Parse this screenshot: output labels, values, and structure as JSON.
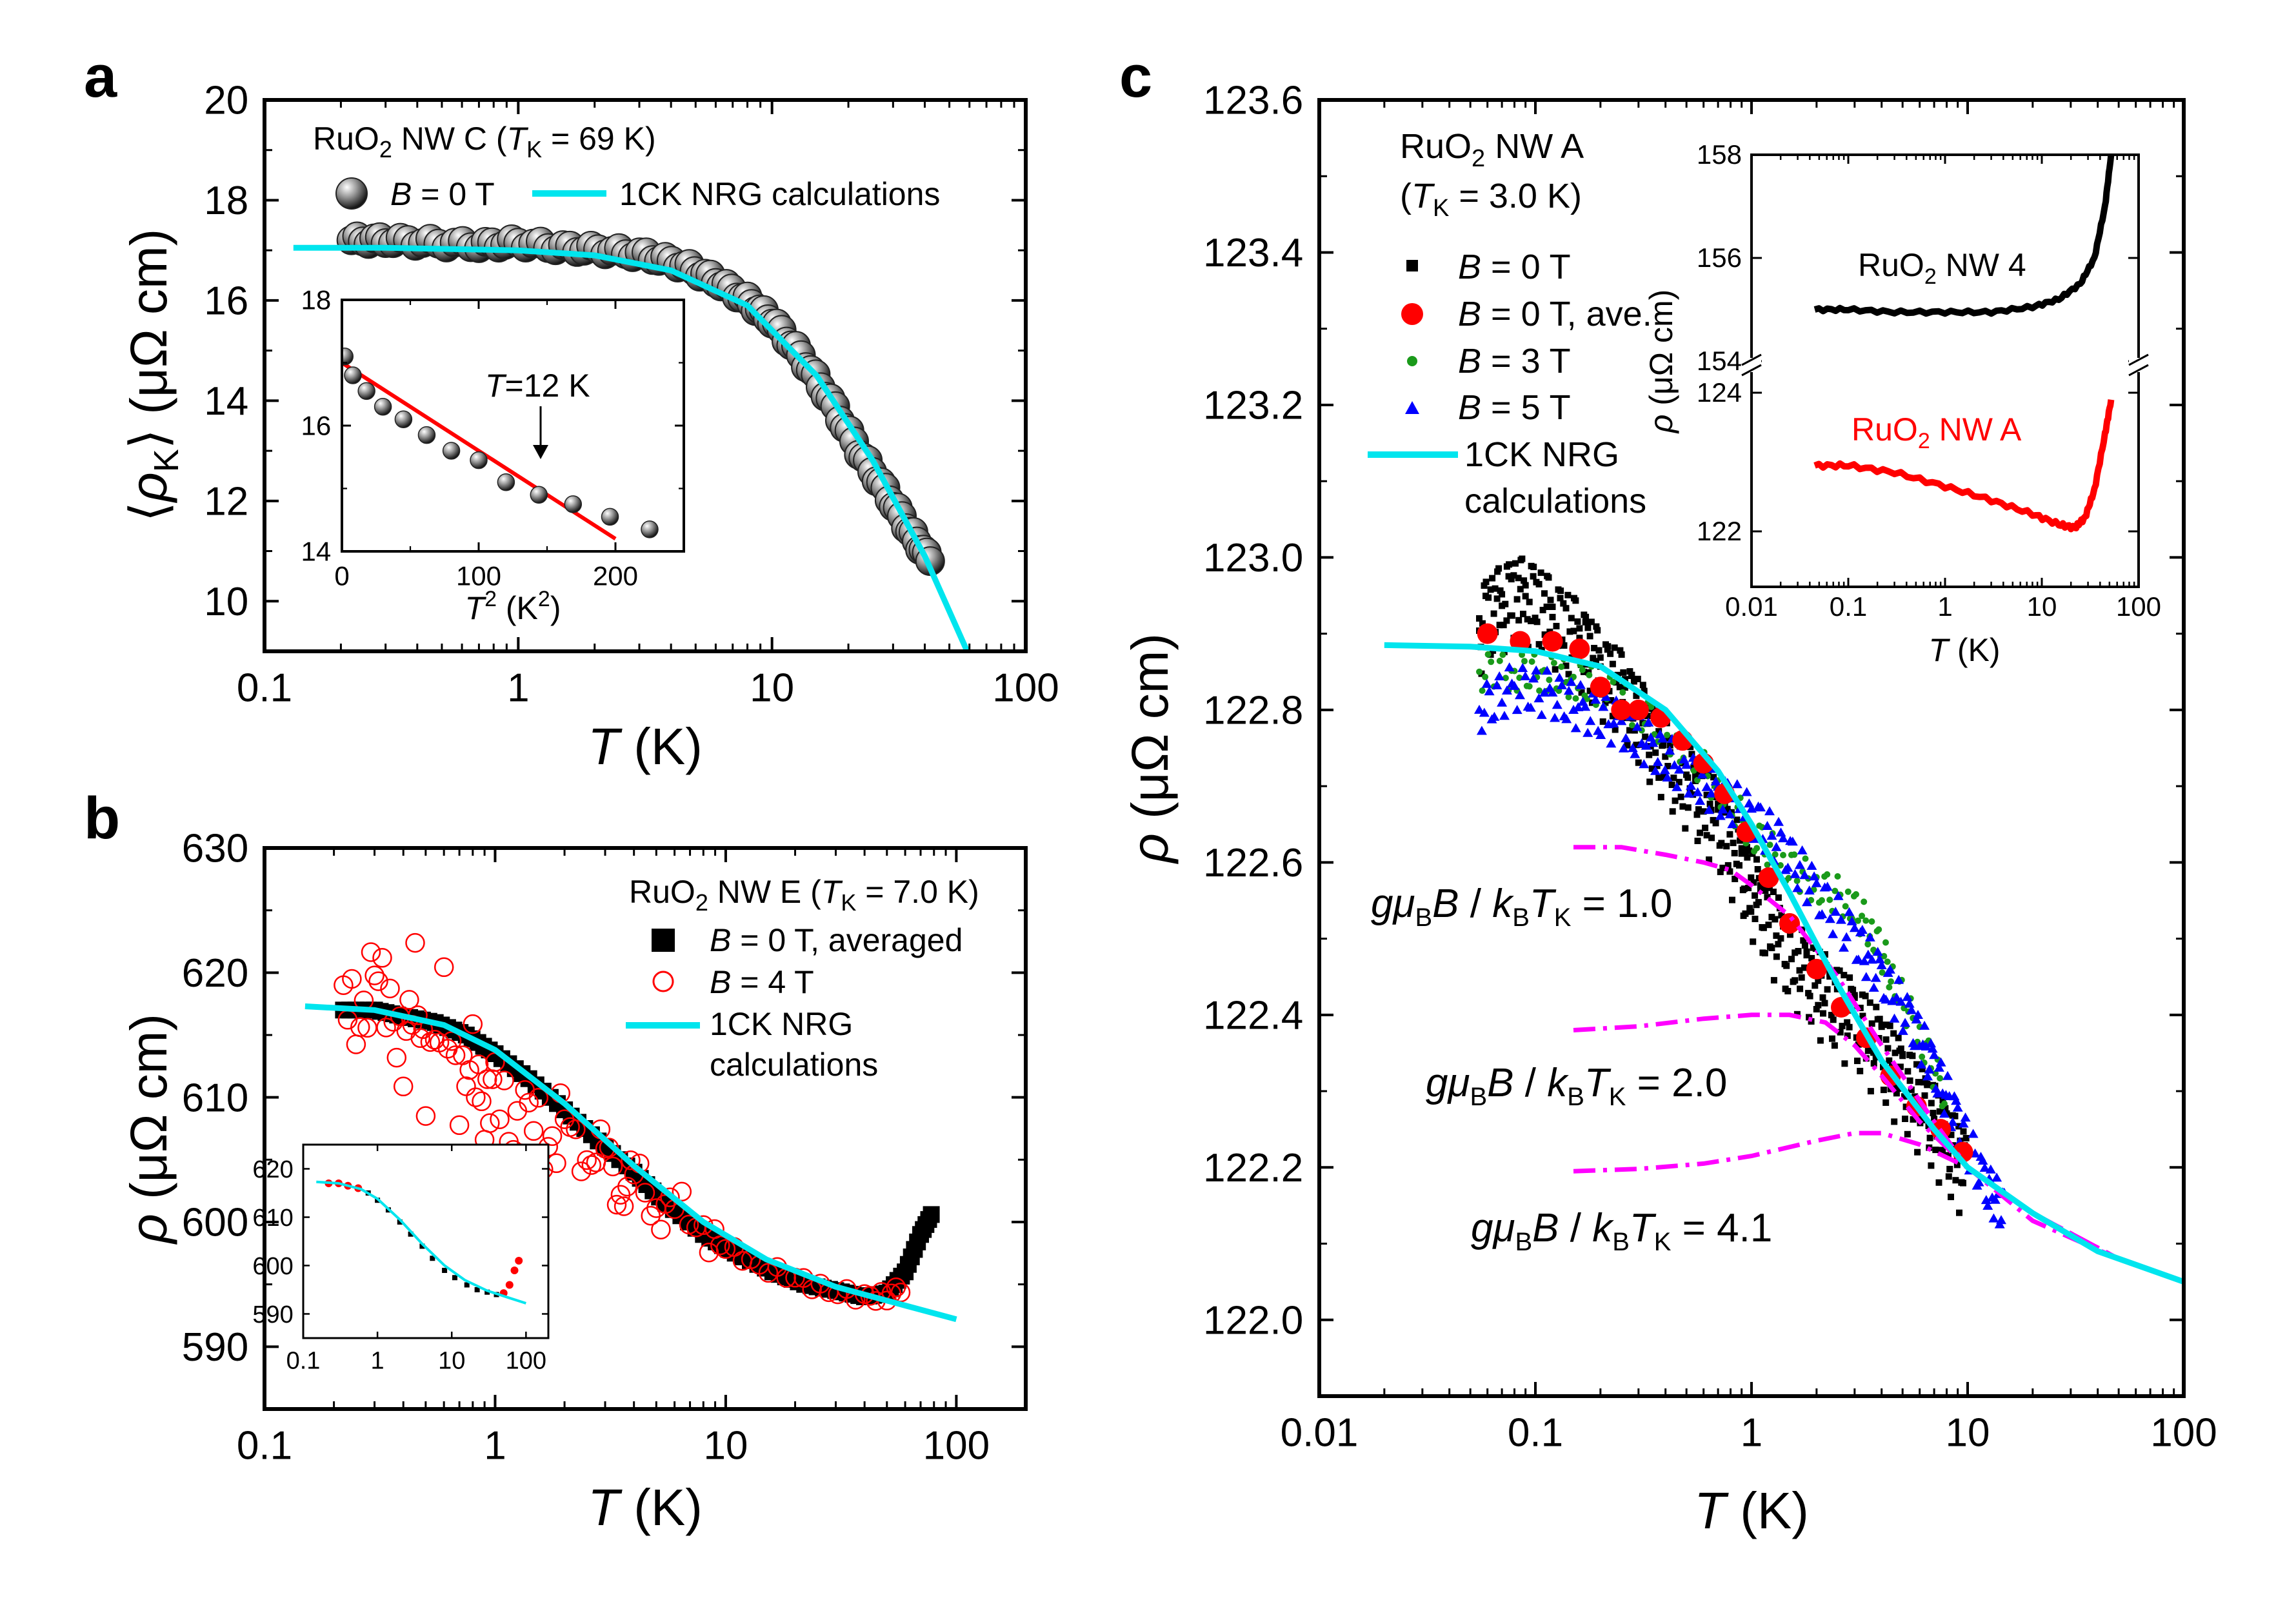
{
  "colors": {
    "nrg": "#00e5ee",
    "ave": "#ff0000",
    "b3": "#1a9a1a",
    "b5": "#0000ff",
    "magenta": "#ff00ff",
    "sphere": "#444444",
    "black": "#000000"
  },
  "chart_data": [
    {
      "id": "a",
      "type": "scatter",
      "panel_label": "a",
      "title": "RuO2 NW C (TK = 69 K)",
      "title_parts": {
        "pre": "RuO",
        "sub1": "2",
        "mid": " NW C (",
        "it": "T",
        "sub2": "K",
        "post": " = 69 K)"
      },
      "xlabel": "T (K)",
      "ylabel": "⟨ρK⟩ (μΩ cm)",
      "ylabel_parts": {
        "open": "⟨",
        "rho": "ρ",
        "sub": "K",
        "close": "⟩",
        "unit": " (μΩ cm)"
      },
      "xscale": "log",
      "xlim": [
        0.1,
        100
      ],
      "ylim": [
        9,
        20
      ],
      "xticks": [
        "0.1",
        "1",
        "10",
        "100"
      ],
      "yticks": [
        "10",
        "12",
        "14",
        "16",
        "18",
        "20"
      ],
      "legend": [
        {
          "symbol": "sphere",
          "label": "B = 0 T",
          "it": "B",
          "rest": " = 0 T"
        },
        {
          "symbol": "line",
          "label": "1CK NRG calculations"
        }
      ],
      "series": [
        {
          "name": "B = 0 T",
          "x": [
            0.22,
            0.3,
            0.45,
            0.7,
            1.0,
            1.5,
            2.2,
            3.2,
            4.5,
            6.0,
            8.0,
            10,
            13,
            17,
            22,
            28,
            35,
            42
          ],
          "y": [
            17.2,
            17.2,
            17.15,
            17.1,
            17.15,
            17.05,
            17.0,
            16.9,
            16.7,
            16.4,
            16.0,
            15.6,
            14.9,
            14.0,
            13.0,
            12.2,
            11.4,
            10.8
          ]
        },
        {
          "name": "1CK NRG calculations",
          "x": [
            0.13,
            0.3,
            1,
            2,
            4,
            8,
            15,
            25,
            40,
            60
          ],
          "y": [
            17.05,
            17.05,
            17.0,
            16.9,
            16.6,
            15.9,
            14.5,
            12.8,
            10.9,
            8.9
          ]
        }
      ],
      "inset": {
        "xlabel": "T2 (K2)",
        "xlim": [
          0,
          250
        ],
        "ylim": [
          14,
          18
        ],
        "xticks": [
          "0",
          "100",
          "200"
        ],
        "yticks": [
          "14",
          "16",
          "18"
        ],
        "annotation": "T=12 K",
        "annotation_parts": {
          "it": "T",
          "rest": "=12 K"
        },
        "series": [
          {
            "name": "data",
            "x": [
              2,
              8,
              18,
              30,
              45,
              62,
              80,
              100,
              120,
              144,
              169,
              196,
              225
            ],
            "y": [
              17.1,
              16.8,
              16.55,
              16.3,
              16.1,
              15.85,
              15.6,
              15.45,
              15.1,
              14.9,
              14.75,
              14.55,
              14.35
            ]
          },
          {
            "name": "fit",
            "x": [
              0,
              200
            ],
            "y": [
              17.0,
              14.2
            ]
          }
        ]
      }
    },
    {
      "id": "b",
      "type": "scatter",
      "panel_label": "b",
      "title": "RuO2 NW E (TK = 7.0 K)",
      "title_parts": {
        "pre": "RuO",
        "sub1": "2",
        "mid": " NW E (",
        "it": "T",
        "sub2": "K",
        "post": " = 7.0 K)"
      },
      "xlabel": "T (K)",
      "ylabel": "ρ (μΩ cm)",
      "xscale": "log",
      "xlim": [
        0.1,
        200
      ],
      "ylim": [
        585,
        630
      ],
      "xticks": [
        "0.1",
        "1",
        "10",
        "100"
      ],
      "yticks": [
        "590",
        "600",
        "610",
        "620",
        "630"
      ],
      "legend": [
        {
          "symbol": "square",
          "label": "B = 0 T, averaged",
          "it": "B",
          "rest": " = 0 T, averaged"
        },
        {
          "symbol": "circle",
          "label": "B = 4 T",
          "it": "B",
          "rest": " = 4 T"
        },
        {
          "symbol": "line",
          "label": "1CK NRG calculations",
          "line1": "1CK NRG",
          "line2": "calculations"
        }
      ],
      "series": [
        {
          "name": "B = 0 T, averaged",
          "x": [
            0.22,
            0.3,
            0.4,
            0.55,
            0.75,
            1.0,
            1.4,
            2.0,
            2.8,
            4.0,
            5.5,
            8,
            11,
            16,
            22,
            30,
            40,
            50,
            60,
            70,
            80
          ],
          "y": [
            617,
            617,
            616.5,
            616,
            615,
            613.5,
            611.5,
            609,
            606.5,
            604,
            601.5,
            599,
            597.5,
            596,
            595,
            594.5,
            594,
            594.3,
            596,
            599,
            601
          ]
        },
        {
          "name": "B = 4 T",
          "x": [
            0.22,
            0.26,
            0.3,
            0.35,
            0.4,
            0.45,
            0.5,
            0.6,
            0.7,
            0.8,
            0.9,
            1.0,
            1.2,
            1.4,
            1.7,
            2.0,
            2.5,
            3.0,
            3.5,
            4.0,
            5.0,
            6.0,
            8.0,
            10,
            14,
            20,
            28,
            40,
            50,
            60
          ],
          "y": [
            619,
            615,
            621,
            617,
            613,
            620,
            611,
            618,
            610,
            614,
            608,
            612,
            606,
            610,
            605,
            609,
            604,
            607,
            601,
            605,
            600,
            602,
            599,
            598,
            596.5,
            595.5,
            594.5,
            594,
            594,
            595
          ]
        },
        {
          "name": "1CK NRG calculations",
          "x": [
            0.15,
            0.3,
            0.6,
            1,
            2,
            4,
            8,
            15,
            30,
            60,
            100
          ],
          "y": [
            617.3,
            617.0,
            615.8,
            613.8,
            609.5,
            604.5,
            600.0,
            597.0,
            594.8,
            593.3,
            592.2
          ]
        }
      ],
      "inset": {
        "xlim": [
          0.1,
          200
        ],
        "ylim": [
          585,
          625
        ],
        "xticks": [
          "0.1",
          "1",
          "10",
          "100"
        ],
        "yticks": [
          "590",
          "600",
          "610",
          "620"
        ]
      }
    },
    {
      "id": "c",
      "type": "scatter",
      "panel_label": "c",
      "title": "RuO2 NW A (TK = 3.0 K)",
      "title_parts": {
        "pre": "RuO",
        "sub1": "2",
        "mid": " NW A",
        "line2_pre": "(",
        "it": "T",
        "sub2": "K",
        "post": " = 3.0 K)"
      },
      "xlabel": "T (K)",
      "ylabel": "ρ (μΩ cm)",
      "xscale": "log",
      "xlim": [
        0.01,
        100
      ],
      "ylim": [
        121.9,
        123.6
      ],
      "xticks": [
        "0.01",
        "0.1",
        "1",
        "10",
        "100"
      ],
      "yticks": [
        "122.0",
        "122.2",
        "122.4",
        "122.6",
        "122.8",
        "123.0",
        "123.2",
        "123.4",
        "123.6"
      ],
      "legend": [
        {
          "symbol": "square",
          "label": "B = 0 T",
          "it": "B",
          "rest": " = 0 T"
        },
        {
          "symbol": "circle",
          "label": "B = 0 T, ave.",
          "it": "B",
          "rest": " = 0 T, ave."
        },
        {
          "symbol": "dot",
          "label": "B = 3 T",
          "it": "B",
          "rest": " = 3 T"
        },
        {
          "symbol": "triangle",
          "label": "B = 5 T",
          "it": "B",
          "rest": " = 5 T"
        },
        {
          "symbol": "line",
          "label": "1CK NRG calculations",
          "line1": "1CK NRG",
          "line2": "calculations"
        }
      ],
      "annotations": [
        {
          "text": "gμB B / kB TK = 1.0",
          "value": "1.0"
        },
        {
          "text": "gμB B / kB TK = 2.0",
          "value": "2.0"
        },
        {
          "text": "gμB B / kB TK = 4.1",
          "value": "4.1"
        }
      ],
      "series": [
        {
          "name": "B = 0 T",
          "x": [
            0.055,
            0.07,
            0.09,
            0.12,
            0.16,
            0.2,
            0.26,
            0.33,
            0.42,
            0.55,
            0.7,
            0.9,
            1.1,
            1.4,
            1.8,
            2.3,
            3.0,
            4.0,
            5.0,
            6.5,
            8.0,
            10
          ],
          "y": [
            122.92,
            122.95,
            122.96,
            122.93,
            122.9,
            122.86,
            122.83,
            122.78,
            122.74,
            122.7,
            122.66,
            122.6,
            122.55,
            122.5,
            122.46,
            122.43,
            122.4,
            122.36,
            122.32,
            122.28,
            122.24,
            122.2
          ]
        },
        {
          "name": "B = 0 T, ave.",
          "x": [
            0.06,
            0.085,
            0.12,
            0.16,
            0.2,
            0.25,
            0.3,
            0.38,
            0.48,
            0.6,
            0.75,
            0.95,
            1.2,
            1.5,
            2.0,
            2.6,
            3.4,
            4.4,
            5.8,
            7.5,
            9.5
          ],
          "y": [
            122.9,
            122.89,
            122.89,
            122.88,
            122.83,
            122.8,
            122.8,
            122.79,
            122.76,
            122.73,
            122.69,
            122.64,
            122.58,
            122.52,
            122.46,
            122.41,
            122.37,
            122.32,
            122.28,
            122.25,
            122.22
          ]
        },
        {
          "name": "B = 3 T",
          "x": [
            0.055,
            0.08,
            0.11,
            0.15,
            0.2,
            0.3,
            0.45,
            0.7,
            1.0,
            1.4,
            2.0,
            2.8,
            3.6,
            4.5,
            6.0,
            8.0
          ],
          "y": [
            122.85,
            122.85,
            122.85,
            122.84,
            122.83,
            122.8,
            122.76,
            122.7,
            122.64,
            122.6,
            122.57,
            122.55,
            122.51,
            122.45,
            122.37,
            122.29
          ]
        },
        {
          "name": "B = 5 T",
          "x": [
            0.055,
            0.08,
            0.12,
            0.17,
            0.25,
            0.35,
            0.5,
            0.7,
            1.0,
            1.4,
            2.0,
            3.0,
            4.0,
            5.5,
            7.0,
            9.0,
            12,
            15
          ],
          "y": [
            122.8,
            122.83,
            122.82,
            122.8,
            122.78,
            122.75,
            122.72,
            122.69,
            122.66,
            122.62,
            122.56,
            122.5,
            122.45,
            122.39,
            122.33,
            122.26,
            122.18,
            122.14
          ]
        },
        {
          "name": "1CK NRG calculations",
          "x": [
            0.02,
            0.05,
            0.1,
            0.2,
            0.4,
            0.7,
            1,
            1.5,
            2.5,
            4,
            7,
            10,
            20,
            40,
            100
          ],
          "y": [
            122.885,
            122.883,
            122.877,
            122.857,
            122.8,
            122.72,
            122.65,
            122.56,
            122.44,
            122.34,
            122.25,
            122.2,
            122.14,
            122.09,
            122.05
          ]
        },
        {
          "name": "gμB B / kB TK = 1.0",
          "x": [
            0.15,
            0.25,
            0.4,
            0.6,
            0.8,
            1,
            1.5,
            2.5,
            4,
            7,
            10,
            20,
            50,
            100
          ],
          "y": [
            122.62,
            122.62,
            122.61,
            122.6,
            122.59,
            122.57,
            122.53,
            122.45,
            122.36,
            122.26,
            122.2,
            122.13,
            122.08,
            122.05
          ]
        },
        {
          "name": "gμB B / kB TK = 2.0",
          "x": [
            0.15,
            0.3,
            0.6,
            1,
            1.5,
            2.2,
            3,
            4,
            6,
            10,
            20,
            50
          ],
          "y": [
            122.38,
            122.385,
            122.395,
            122.4,
            122.4,
            122.39,
            122.36,
            122.32,
            122.26,
            122.2,
            122.14,
            122.08
          ]
        },
        {
          "name": "gμB B / kB TK = 4.1",
          "x": [
            0.15,
            0.3,
            0.6,
            1,
            2,
            3,
            4,
            6,
            10,
            20,
            50
          ],
          "y": [
            122.195,
            122.198,
            122.205,
            122.215,
            122.235,
            122.245,
            122.245,
            122.23,
            122.2,
            122.14,
            122.08
          ]
        }
      ],
      "inset": {
        "xlabel": "T (K)",
        "ylabel": "ρ (μΩ cm)",
        "xlim": [
          0.01,
          100
        ],
        "xticks": [
          "0.01",
          "0.1",
          "1",
          "10",
          "100"
        ],
        "yticks_top": [
          "154",
          "156",
          "158"
        ],
        "yticks_bottom": [
          "122",
          "124"
        ],
        "labels": [
          {
            "name": "RuO2 NW 4",
            "pre": "RuO",
            "sub": "2",
            "post": " NW 4"
          },
          {
            "name": "RuO2 NW A",
            "pre": "RuO",
            "sub": "2",
            "post": " NW A"
          }
        ],
        "series": [
          {
            "name": "RuO2 NW 4",
            "x": [
              0.045,
              0.1,
              0.3,
              1,
              3,
              8,
              15,
              25,
              35,
              45,
              52
            ],
            "y": [
              155.0,
              155.0,
              154.95,
              154.95,
              154.95,
              155.05,
              155.2,
              155.5,
              156.0,
              157.0,
              158.0
            ]
          },
          {
            "name": "RuO2 NW A",
            "x": [
              0.045,
              0.1,
              0.3,
              1,
              3,
              8,
              15,
              22,
              28,
              35,
              45,
              52
            ],
            "y": [
              122.95,
              122.95,
              122.85,
              122.65,
              122.45,
              122.25,
              122.1,
              122.05,
              122.2,
              122.6,
              123.4,
              123.9
            ]
          }
        ]
      }
    }
  ]
}
